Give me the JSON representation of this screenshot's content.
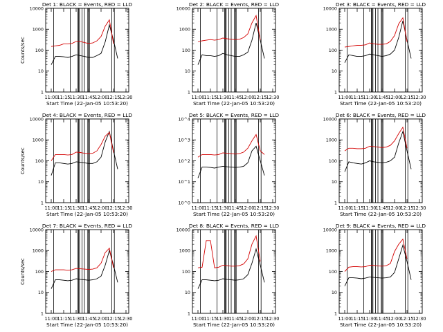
{
  "figure": {
    "background": "#ffffff",
    "axis_color": "#000000",
    "events_color": "#000000",
    "lld_color": "#d40000"
  },
  "chart_data": [
    {
      "type": "line",
      "title": "Det 1: BLACK = Events, RED = LLD",
      "xlabel": "Start Time (22-Jan-05 10:53:20)",
      "ylabel": "Counts/sec",
      "y_scale": "log",
      "ylim": [
        1,
        10000
      ],
      "y_ticks": [
        "1",
        "10",
        "100",
        "1000",
        "10000"
      ],
      "xlim_minutes_after_start": [
        0,
        100
      ],
      "x_ticks": [
        "11:00",
        "11:15",
        "11:30",
        "11:45",
        "12:00",
        "12:15",
        "12:30"
      ],
      "x": [
        "11:00",
        "11:05",
        "11:10",
        "11:15",
        "11:20",
        "11:25",
        "11:30",
        "11:35",
        "11:40",
        "11:45",
        "11:50",
        "11:55",
        "12:00",
        "12:05",
        "12:10",
        "12:15",
        "12:20"
      ],
      "series": [
        {
          "name": "Events",
          "values": [
            20,
            50,
            50,
            48,
            45,
            50,
            60,
            55,
            50,
            45,
            45,
            55,
            70,
            250,
            1600,
            300,
            40
          ]
        },
        {
          "name": "LLD",
          "values": [
            150,
            160,
            170,
            200,
            200,
            210,
            260,
            260,
            230,
            210,
            220,
            280,
            450,
            1400,
            2800,
            200,
            null
          ]
        }
      ],
      "vertical_lines": [
        "11:03",
        "11:23",
        "11:32",
        "11:33",
        "11:34",
        "11:37",
        "11:40",
        "11:44",
        "11:45",
        "11:46",
        "12:13",
        "12:16"
      ]
    },
    {
      "type": "line",
      "title": "Det 2: BLACK = Events, RED = LLD",
      "xlabel": "Start Time (22-Jan-05 10:53:20)",
      "ylabel": "",
      "y_scale": "log",
      "ylim": [
        1,
        10000
      ],
      "y_ticks": [
        "1",
        "10",
        "100",
        "1000",
        "10000"
      ],
      "xlim_minutes_after_start": [
        0,
        100
      ],
      "x_ticks": [
        "11:00",
        "11:15",
        "11:30",
        "11:45",
        "12:00",
        "12:15",
        "12:30"
      ],
      "x": [
        "11:00",
        "11:05",
        "11:10",
        "11:15",
        "11:20",
        "11:25",
        "11:30",
        "11:35",
        "11:40",
        "11:45",
        "11:50",
        "11:55",
        "12:00",
        "12:05",
        "12:10",
        "12:15",
        "12:20"
      ],
      "series": [
        {
          "name": "Events",
          "values": [
            20,
            60,
            55,
            55,
            50,
            55,
            70,
            60,
            55,
            50,
            50,
            60,
            80,
            300,
            2000,
            300,
            40
          ]
        },
        {
          "name": "LLD",
          "values": [
            250,
            280,
            300,
            320,
            300,
            320,
            380,
            350,
            330,
            320,
            330,
            400,
            600,
            2000,
            4500,
            300,
            null
          ]
        }
      ],
      "vertical_lines": [
        "11:03",
        "11:23",
        "11:32",
        "11:33",
        "11:34",
        "11:37",
        "11:40",
        "11:44",
        "11:45",
        "11:46",
        "12:13",
        "12:16"
      ]
    },
    {
      "type": "line",
      "title": "Det 3: BLACK = Events, RED = LLD",
      "xlabel": "Start Time (22-Jan-05 10:53:20)",
      "ylabel": "",
      "y_scale": "log",
      "ylim": [
        1,
        10000
      ],
      "y_ticks": [
        "1",
        "10",
        "100",
        "1000",
        "10000"
      ],
      "xlim_minutes_after_start": [
        0,
        100
      ],
      "x_ticks": [
        "11:00",
        "11:15",
        "11:30",
        "11:45",
        "12:00",
        "12:15",
        "12:30"
      ],
      "x": [
        "11:00",
        "11:05",
        "11:10",
        "11:15",
        "11:20",
        "11:25",
        "11:30",
        "11:35",
        "11:40",
        "11:45",
        "11:50",
        "11:55",
        "12:00",
        "12:05",
        "12:10",
        "12:15",
        "12:20"
      ],
      "series": [
        {
          "name": "Events",
          "values": [
            25,
            60,
            55,
            50,
            50,
            55,
            65,
            60,
            55,
            50,
            55,
            65,
            100,
            400,
            2500,
            300,
            40
          ]
        },
        {
          "name": "LLD",
          "values": [
            140,
            150,
            160,
            170,
            170,
            180,
            220,
            200,
            190,
            190,
            200,
            260,
            500,
            1800,
            3500,
            250,
            null
          ]
        }
      ],
      "vertical_lines": [
        "11:03",
        "11:23",
        "11:32",
        "11:33",
        "11:34",
        "11:37",
        "11:40",
        "11:44",
        "11:45",
        "11:46",
        "12:13",
        "12:16"
      ]
    },
    {
      "type": "line",
      "title": "Det 4: BLACK = Events, RED = LLD",
      "xlabel": "Start Time (22-Jan-05 10:53:20)",
      "ylabel": "Counts/sec",
      "y_scale": "log",
      "ylim": [
        1,
        10000
      ],
      "y_ticks": [
        "1",
        "10",
        "100",
        "1000",
        "10000"
      ],
      "xlim_minutes_after_start": [
        0,
        100
      ],
      "x_ticks": [
        "11:00",
        "11:15",
        "11:30",
        "11:45",
        "12:00",
        "12:15",
        "12:30"
      ],
      "x": [
        "11:00",
        "11:05",
        "11:10",
        "11:15",
        "11:20",
        "11:25",
        "11:30",
        "11:35",
        "11:40",
        "11:45",
        "11:50",
        "11:55",
        "12:00",
        "12:05",
        "12:10",
        "12:15",
        "12:20"
      ],
      "series": [
        {
          "name": "Events",
          "values": [
            20,
            80,
            80,
            75,
            70,
            75,
            90,
            85,
            80,
            75,
            75,
            90,
            150,
            800,
            2500,
            300,
            40
          ]
        },
        {
          "name": "LLD",
          "values": [
            100,
            200,
            200,
            200,
            190,
            200,
            260,
            250,
            230,
            220,
            230,
            300,
            600,
            1500,
            2300,
            250,
            null
          ]
        }
      ],
      "vertical_lines": [
        "11:03",
        "11:23",
        "11:32",
        "11:33",
        "11:34",
        "11:37",
        "11:40",
        "11:44",
        "11:45",
        "11:46",
        "12:13",
        "12:16"
      ]
    },
    {
      "type": "line",
      "title": "Det 5: BLACK = Events, RED = LLD",
      "xlabel": "Start Time (22-Jan-05 10:53:20)",
      "ylabel": "",
      "y_scale": "log",
      "ylim": [
        1,
        10000
      ],
      "y_ticks": [
        "10^0",
        "10^1",
        "10^2",
        "10^3",
        "10^4"
      ],
      "xlim_minutes_after_start": [
        0,
        100
      ],
      "x_ticks": [
        "11:00",
        "11:15",
        "11:30",
        "11:45",
        "12:00",
        "12:15",
        "12:30"
      ],
      "x": [
        "11:00",
        "11:05",
        "11:10",
        "11:15",
        "11:20",
        "11:25",
        "11:30",
        "11:35",
        "11:40",
        "11:45",
        "11:50",
        "11:55",
        "12:00",
        "12:05",
        "12:10",
        "12:15",
        "12:20"
      ],
      "series": [
        {
          "name": "Events",
          "values": [
            15,
            50,
            50,
            48,
            45,
            50,
            55,
            52,
            50,
            48,
            50,
            55,
            80,
            300,
            500,
            100,
            20
          ]
        },
        {
          "name": "LLD",
          "values": [
            150,
            200,
            200,
            200,
            190,
            200,
            240,
            230,
            220,
            210,
            220,
            260,
            400,
            900,
            1800,
            300,
            200
          ]
        }
      ],
      "vertical_lines": [
        "11:03",
        "11:23",
        "11:32",
        "11:33",
        "11:34",
        "11:37",
        "11:40",
        "11:44",
        "11:45",
        "11:46",
        "12:13",
        "12:16"
      ]
    },
    {
      "type": "line",
      "title": "Det 6: BLACK = Events, RED = LLD",
      "xlabel": "Start Time (22-Jan-05 10:53:20)",
      "ylabel": "",
      "y_scale": "log",
      "ylim": [
        1,
        10000
      ],
      "y_ticks": [
        "1",
        "10",
        "100",
        "1000",
        "10000"
      ],
      "xlim_minutes_after_start": [
        0,
        100
      ],
      "x_ticks": [
        "11:00",
        "11:15",
        "11:30",
        "11:45",
        "12:00",
        "12:15",
        "12:30"
      ],
      "x": [
        "11:00",
        "11:05",
        "11:10",
        "11:15",
        "11:20",
        "11:25",
        "11:30",
        "11:35",
        "11:40",
        "11:45",
        "11:50",
        "11:55",
        "12:00",
        "12:05",
        "12:10",
        "12:15",
        "12:20"
      ],
      "series": [
        {
          "name": "Events",
          "values": [
            30,
            90,
            80,
            75,
            70,
            80,
            100,
            90,
            85,
            80,
            85,
            100,
            150,
            700,
            2500,
            300,
            40
          ]
        },
        {
          "name": "LLD",
          "values": [
            300,
            400,
            400,
            380,
            380,
            400,
            500,
            480,
            450,
            430,
            450,
            550,
            900,
            2000,
            4000,
            400,
            null
          ]
        }
      ],
      "vertical_lines": [
        "11:03",
        "11:23",
        "11:32",
        "11:33",
        "11:34",
        "11:37",
        "11:40",
        "11:44",
        "11:45",
        "11:46",
        "12:13",
        "12:16"
      ]
    },
    {
      "type": "line",
      "title": "Det 7: BLACK = Events, RED = LLD",
      "xlabel": "Start Time (22-Jan-05 10:53:20)",
      "ylabel": "Counts/sec",
      "y_scale": "log",
      "ylim": [
        1,
        10000
      ],
      "y_ticks": [
        "1",
        "10",
        "100",
        "1000",
        "10000"
      ],
      "xlim_minutes_after_start": [
        0,
        100
      ],
      "x_ticks": [
        "11:00",
        "11:15",
        "11:30",
        "11:45",
        "12:00",
        "12:15",
        "12:30"
      ],
      "x": [
        "11:00",
        "11:05",
        "11:10",
        "11:15",
        "11:20",
        "11:25",
        "11:30",
        "11:35",
        "11:40",
        "11:45",
        "11:50",
        "11:55",
        "12:00",
        "12:05",
        "12:10",
        "12:15",
        "12:20"
      ],
      "series": [
        {
          "name": "Events",
          "values": [
            15,
            40,
            40,
            38,
            36,
            38,
            45,
            42,
            40,
            38,
            40,
            45,
            60,
            200,
            1000,
            200,
            30
          ]
        },
        {
          "name": "LLD",
          "values": [
            100,
            120,
            120,
            120,
            115,
            120,
            140,
            135,
            130,
            125,
            130,
            150,
            250,
            800,
            1300,
            150,
            null
          ]
        }
      ],
      "vertical_lines": [
        "11:03",
        "11:23",
        "11:32",
        "11:33",
        "11:34",
        "11:37",
        "11:40",
        "11:44",
        "11:45",
        "11:46",
        "12:13",
        "12:16"
      ]
    },
    {
      "type": "line",
      "title": "Det 8: BLACK = Events, RED = LLD",
      "xlabel": "Start Time (22-Jan-05 10:53:20)",
      "ylabel": "",
      "y_scale": "log",
      "ylim": [
        1,
        10000
      ],
      "y_ticks": [
        "1",
        "10",
        "100",
        "1000",
        "10000"
      ],
      "xlim_minutes_after_start": [
        0,
        100
      ],
      "x_ticks": [
        "11:00",
        "11:15",
        "11:30",
        "11:45",
        "12:00",
        "12:15",
        "12:30"
      ],
      "x": [
        "11:00",
        "11:05",
        "11:10",
        "11:15",
        "11:20",
        "11:25",
        "11:30",
        "11:35",
        "11:40",
        "11:45",
        "11:50",
        "11:55",
        "12:00",
        "12:05",
        "12:10",
        "12:15",
        "12:20"
      ],
      "series": [
        {
          "name": "Events",
          "values": [
            15,
            40,
            40,
            38,
            36,
            38,
            45,
            42,
            40,
            38,
            40,
            45,
            70,
            250,
            1200,
            200,
            30
          ]
        },
        {
          "name": "LLD",
          "values": [
            150,
            160,
            3000,
            3000,
            150,
            160,
            200,
            190,
            180,
            180,
            190,
            230,
            400,
            2000,
            5000,
            300,
            null
          ]
        }
      ],
      "vertical_lines": [
        "11:03",
        "11:23",
        "11:32",
        "11:33",
        "11:34",
        "11:37",
        "11:40",
        "11:44",
        "11:45",
        "11:46",
        "12:13",
        "12:16"
      ]
    },
    {
      "type": "line",
      "title": "Det 9: BLACK = Events, RED = LLD",
      "xlabel": "Start Time (22-Jan-05 10:53:20)",
      "ylabel": "",
      "y_scale": "log",
      "ylim": [
        1,
        10000
      ],
      "y_ticks": [
        "1",
        "10",
        "100",
        "1000",
        "10000"
      ],
      "xlim_minutes_after_start": [
        0,
        100
      ],
      "x_ticks": [
        "11:00",
        "11:15",
        "11:30",
        "11:45",
        "12:00",
        "12:15",
        "12:30"
      ],
      "x": [
        "11:00",
        "11:05",
        "11:10",
        "11:15",
        "11:20",
        "11:25",
        "11:30",
        "11:35",
        "11:40",
        "11:45",
        "11:50",
        "11:55",
        "12:00",
        "12:05",
        "12:10",
        "12:15",
        "12:20"
      ],
      "series": [
        {
          "name": "Events",
          "values": [
            20,
            50,
            50,
            48,
            45,
            48,
            55,
            52,
            50,
            48,
            50,
            55,
            90,
            400,
            1800,
            300,
            40
          ]
        },
        {
          "name": "LLD",
          "values": [
            100,
            160,
            170,
            170,
            165,
            170,
            200,
            195,
            185,
            180,
            190,
            240,
            900,
            2000,
            3500,
            400,
            null
          ]
        }
      ],
      "vertical_lines": [
        "11:03",
        "11:23",
        "11:32",
        "11:33",
        "11:34",
        "11:37",
        "11:40",
        "11:44",
        "11:45",
        "11:46",
        "12:13",
        "12:16"
      ]
    }
  ]
}
